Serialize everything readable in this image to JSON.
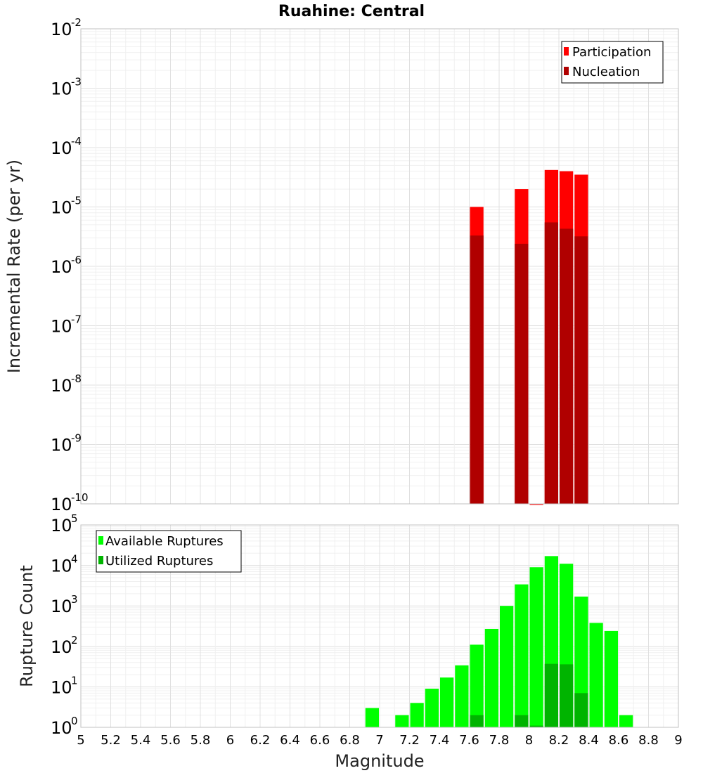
{
  "chart_data": [
    {
      "type": "bar",
      "title": "Ruahine: Central",
      "xlabel": "",
      "ylabel": "Incremental Rate (per yr)",
      "yscale": "log",
      "ylim_exponents": [
        -10,
        -2
      ],
      "xlim": [
        5,
        9
      ],
      "bar_width": 0.1,
      "legend": [
        "Participation",
        "Nucleation"
      ],
      "legend_position": "top-right",
      "series": [
        {
          "name": "Participation",
          "color": "#ff0000",
          "x": [
            7.65,
            7.95,
            8.05,
            8.15,
            8.25,
            8.35
          ],
          "values": [
            1e-05,
            2e-05,
            1e-10,
            4.2e-05,
            4e-05,
            3.5e-05
          ]
        },
        {
          "name": "Nucleation",
          "color": "#b00000",
          "x": [
            7.65,
            7.95,
            8.15,
            8.25,
            8.35
          ],
          "values": [
            3.3e-06,
            2.4e-06,
            5.5e-06,
            4.3e-06,
            3.2e-06
          ]
        }
      ]
    },
    {
      "type": "bar",
      "title": "",
      "xlabel": "Magnitude",
      "ylabel": "Rupture Count",
      "yscale": "log",
      "ylim_exponents": [
        0,
        5
      ],
      "xlim": [
        5,
        9
      ],
      "bar_width": 0.1,
      "legend": [
        "Available Ruptures",
        "Utilized Ruptures"
      ],
      "legend_position": "top-left",
      "series": [
        {
          "name": "Available Ruptures",
          "color": "#00ff00",
          "x": [
            6.95,
            7.15,
            7.25,
            7.35,
            7.45,
            7.55,
            7.65,
            7.75,
            7.85,
            7.95,
            8.05,
            8.15,
            8.25,
            8.35,
            8.45,
            8.55,
            8.65
          ],
          "values": [
            3,
            2,
            4,
            9,
            17,
            34,
            110,
            270,
            1000,
            3400,
            9000,
            17000,
            11000,
            1700,
            380,
            240,
            2
          ]
        },
        {
          "name": "Utilized Ruptures",
          "color": "#00b400",
          "x": [
            7.65,
            7.95,
            8.05,
            8.15,
            8.25,
            8.35
          ],
          "values": [
            2,
            2,
            1.1,
            37,
            36,
            7
          ]
        }
      ]
    }
  ],
  "x_tick_labels": [
    "5",
    "5.2",
    "5.4",
    "5.6",
    "5.8",
    "6",
    "6.2",
    "6.4",
    "6.6",
    "6.8",
    "7",
    "7.2",
    "7.4",
    "7.6",
    "7.8",
    "8",
    "8.2",
    "8.4",
    "8.6",
    "8.8",
    "9"
  ],
  "top_y_ticks": [
    {
      "base": "10",
      "exp": "-2"
    },
    {
      "base": "10",
      "exp": "-3"
    },
    {
      "base": "10",
      "exp": "-4"
    },
    {
      "base": "10",
      "exp": "-5"
    },
    {
      "base": "10",
      "exp": "-6"
    },
    {
      "base": "10",
      "exp": "-7"
    },
    {
      "base": "10",
      "exp": "-8"
    },
    {
      "base": "10",
      "exp": "-9"
    },
    {
      "base": "10",
      "exp": "-10"
    }
  ],
  "bottom_y_ticks": [
    {
      "base": "10",
      "exp": "5"
    },
    {
      "base": "10",
      "exp": "4"
    },
    {
      "base": "10",
      "exp": "3"
    },
    {
      "base": "10",
      "exp": "2"
    },
    {
      "base": "10",
      "exp": "1"
    },
    {
      "base": "10",
      "exp": "0"
    }
  ]
}
